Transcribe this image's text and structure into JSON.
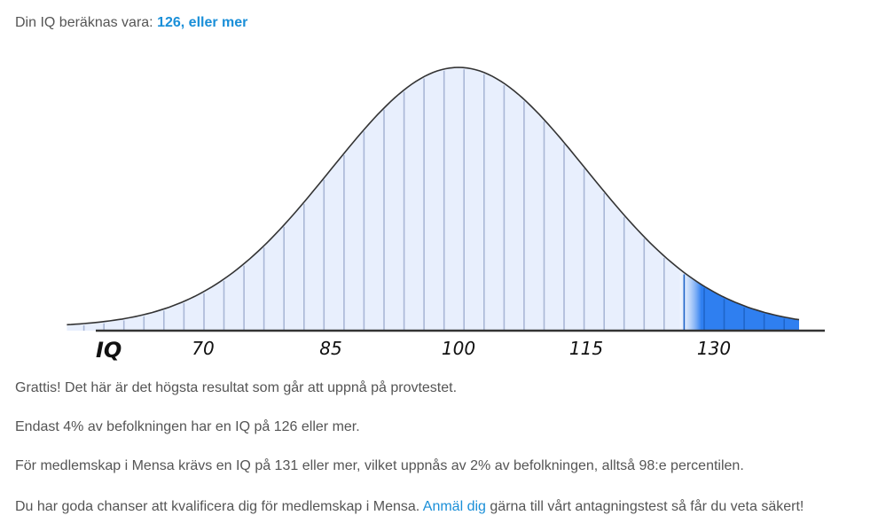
{
  "result": {
    "prefix": "Din IQ beräknas vara:",
    "value": "126, eller mer"
  },
  "chart_data": {
    "type": "area",
    "title": "",
    "xlabel": "IQ",
    "ylabel": "",
    "x_ticks": [
      70,
      85,
      100,
      115,
      130
    ],
    "tick_labels": [
      "70",
      "85",
      "100",
      "115",
      "130"
    ],
    "distribution": {
      "mean": 100,
      "sd": 15
    },
    "highlight_from": 126,
    "xlim": [
      54,
      140
    ],
    "fill_color": "#e8effd",
    "line_color": "#a9b7d6",
    "curve_color": "#333333",
    "highlight_color": "#2f7ff0"
  },
  "paragraphs": {
    "p1": "Grattis! Det här är det högsta resultat som går att uppnå på provtestet.",
    "p2": "Endast 4% av befolkningen har en IQ på 126 eller mer.",
    "p3": "För medlemskap i Mensa krävs en IQ på 131 eller mer, vilket uppnås av 2% av befolkningen, alltså 98:e percentilen.",
    "p4_before": "Du har goda chanser att kvalificera dig för medlemskap i Mensa.",
    "p4_link": "Anmäl dig",
    "p4_after": "gärna till vårt antagningstest så får du veta säkert!"
  }
}
